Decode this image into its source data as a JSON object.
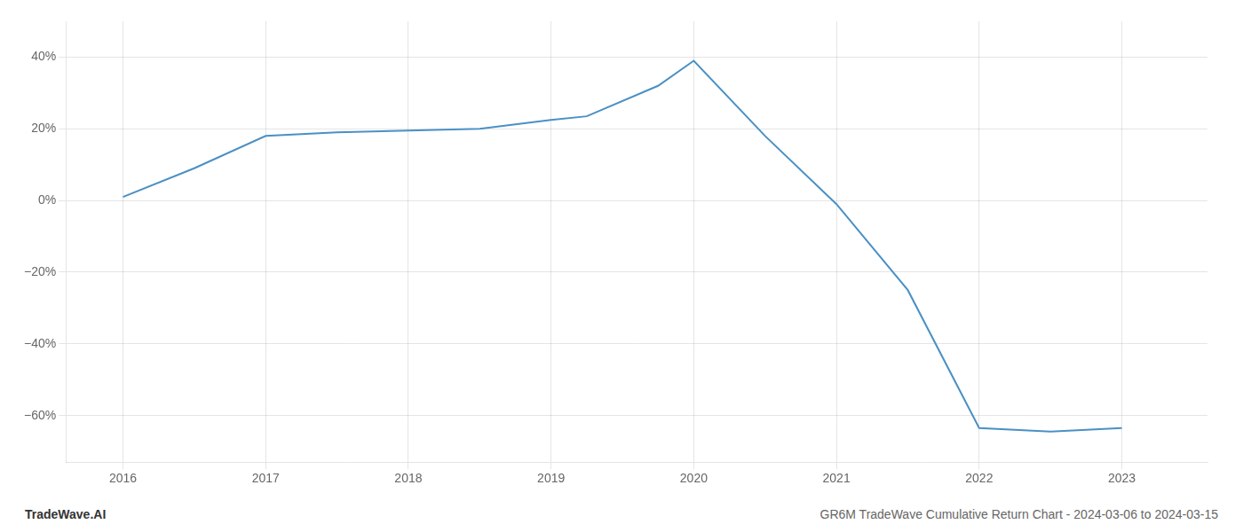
{
  "chart_data": {
    "type": "line",
    "x": [
      2016,
      2016.5,
      2017,
      2017.25,
      2017.5,
      2018,
      2018.5,
      2019,
      2019.25,
      2019.75,
      2020,
      2020.5,
      2021,
      2021.5,
      2022,
      2022.5,
      2023
    ],
    "values": [
      0.01,
      0.09,
      0.18,
      0.185,
      0.19,
      0.195,
      0.2,
      0.225,
      0.235,
      0.32,
      0.39,
      0.18,
      -0.01,
      -0.25,
      -0.635,
      -0.645,
      -0.635
    ],
    "color": "#4a90c4",
    "xlim": [
      2015.6,
      2023.6
    ],
    "ylim": [
      -0.73,
      0.5
    ],
    "xticks": [
      2016,
      2017,
      2018,
      2019,
      2020,
      2021,
      2022,
      2023
    ],
    "yticks": [
      {
        "value": 0.4,
        "label": "40%"
      },
      {
        "value": 0.2,
        "label": "20%"
      },
      {
        "value": 0.0,
        "label": "0%"
      },
      {
        "value": -0.2,
        "label": "−20%"
      },
      {
        "value": -0.4,
        "label": "−40%"
      },
      {
        "value": -0.6,
        "label": "−60%"
      }
    ],
    "grid": true,
    "annotations": [
      "TradeWave.AI",
      "GR6M TradeWave Cumulative Return Chart - 2024-03-06 to 2024-03-15"
    ]
  }
}
